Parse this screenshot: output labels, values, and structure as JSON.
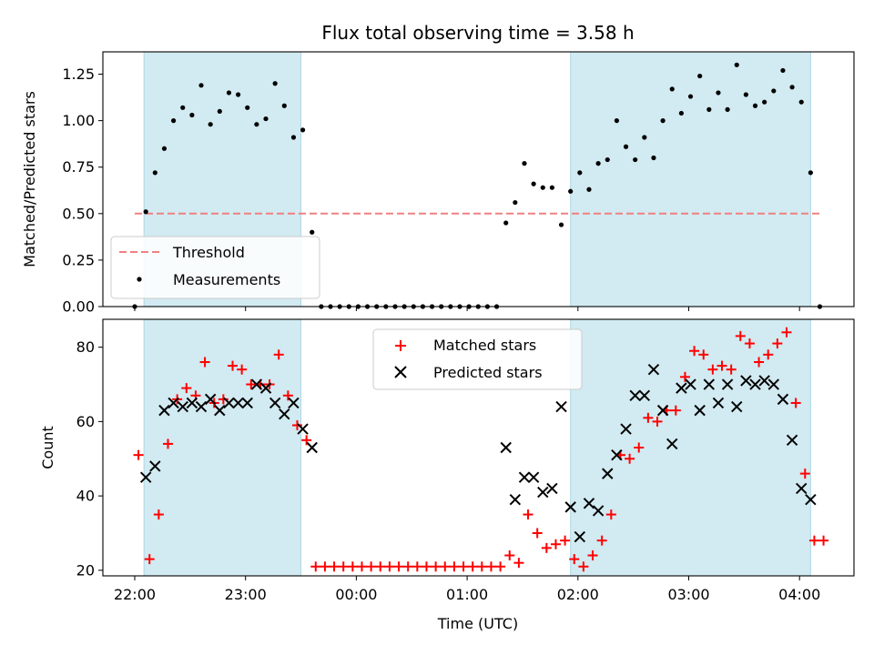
{
  "title": "Flux total observing time = 3.58 h",
  "x_axis": {
    "label": "Time (UTC)",
    "tick_labels": [
      "22:00",
      "23:00",
      "00:00",
      "01:00",
      "02:00",
      "03:00",
      "04:00"
    ]
  },
  "shaded_spans": [
    [
      "22:05",
      "23:30"
    ],
    [
      "01:56",
      "04:06"
    ]
  ],
  "shade_color": "#add8e6",
  "chart_data": [
    {
      "type": "scatter",
      "ylabel": "Matched/Predicted stars",
      "ylim": [
        0,
        1.37
      ],
      "yticks": [
        0.0,
        0.25,
        0.5,
        0.75,
        1.0,
        1.25
      ],
      "ytick_labels": [
        "0.00",
        "0.25",
        "0.50",
        "0.75",
        "1.00",
        "1.25"
      ],
      "legend_position": "lower-left",
      "threshold": {
        "name": "Threshold",
        "value": 0.5,
        "x_range": [
          "22:00",
          "04:12"
        ],
        "color": "#f08080",
        "style": "dashed"
      },
      "series": [
        {
          "name": "Measurements",
          "color": "#000000",
          "x": [
            "22:00",
            "22:06",
            "22:11",
            "22:16",
            "22:21",
            "22:26",
            "22:31",
            "22:36",
            "22:41",
            "22:46",
            "22:51",
            "22:56",
            "23:01",
            "23:06",
            "23:11",
            "23:16",
            "23:21",
            "23:26",
            "23:31",
            "23:36",
            "23:41",
            "23:46",
            "23:51",
            "23:56",
            "00:01",
            "00:06",
            "00:11",
            "00:16",
            "00:21",
            "00:26",
            "00:31",
            "00:36",
            "00:41",
            "00:46",
            "00:51",
            "00:56",
            "01:01",
            "01:06",
            "01:11",
            "01:16",
            "01:21",
            "01:26",
            "01:31",
            "01:36",
            "01:41",
            "01:46",
            "01:51",
            "01:56",
            "02:01",
            "02:06",
            "02:11",
            "02:16",
            "02:21",
            "02:26",
            "02:31",
            "02:36",
            "02:41",
            "02:46",
            "02:51",
            "02:56",
            "03:01",
            "03:06",
            "03:11",
            "03:16",
            "03:21",
            "03:26",
            "03:31",
            "03:36",
            "03:41",
            "03:46",
            "03:51",
            "03:56",
            "04:01",
            "04:06",
            "04:11"
          ],
          "y": [
            0.0,
            0.51,
            0.72,
            0.85,
            1.0,
            1.07,
            1.03,
            1.19,
            0.98,
            1.05,
            1.15,
            1.14,
            1.07,
            0.98,
            1.01,
            1.2,
            1.08,
            0.91,
            0.95,
            0.4,
            0.0,
            0.0,
            0.0,
            0.0,
            0.0,
            0.0,
            0.0,
            0.0,
            0.0,
            0.0,
            0.0,
            0.0,
            0.0,
            0.0,
            0.0,
            0.0,
            0.0,
            0.0,
            0.0,
            0.0,
            0.45,
            0.56,
            0.77,
            0.66,
            0.64,
            0.64,
            0.44,
            0.62,
            0.72,
            0.63,
            0.77,
            0.79,
            1.0,
            0.86,
            0.79,
            0.91,
            0.8,
            1.0,
            1.17,
            1.04,
            1.13,
            1.24,
            1.06,
            1.15,
            1.06,
            1.3,
            1.14,
            1.08,
            1.1,
            1.16,
            1.27,
            1.18,
            1.1,
            0.72,
            0.0
          ]
        }
      ]
    },
    {
      "type": "scatter",
      "ylabel": "Count",
      "ylim": [
        18.5,
        87.5
      ],
      "yticks": [
        20,
        40,
        60,
        80
      ],
      "ytick_labels": [
        "20",
        "40",
        "60",
        "80"
      ],
      "legend_position": "top-center",
      "series": [
        {
          "name": "Matched stars",
          "color": "#ff0000",
          "marker": "plus",
          "x": [
            "22:02",
            "22:08",
            "22:13",
            "22:18",
            "22:23",
            "22:28",
            "22:33",
            "22:38",
            "22:43",
            "22:48",
            "22:53",
            "22:58",
            "23:03",
            "23:08",
            "23:13",
            "23:18",
            "23:23",
            "23:28",
            "23:33",
            "23:38",
            "23:43",
            "23:48",
            "23:53",
            "23:58",
            "00:03",
            "00:08",
            "00:13",
            "00:18",
            "00:23",
            "00:28",
            "00:33",
            "00:38",
            "00:43",
            "00:48",
            "00:53",
            "00:58",
            "01:03",
            "01:08",
            "01:13",
            "01:18",
            "01:23",
            "01:28",
            "01:33",
            "01:38",
            "01:43",
            "01:48",
            "01:53",
            "01:58",
            "02:03",
            "02:08",
            "02:13",
            "02:18",
            "02:23",
            "02:28",
            "02:33",
            "02:38",
            "02:43",
            "02:48",
            "02:53",
            "02:58",
            "03:03",
            "03:08",
            "03:13",
            "03:18",
            "03:23",
            "03:28",
            "03:33",
            "03:38",
            "03:43",
            "03:48",
            "03:53",
            "03:58",
            "04:03",
            "04:08",
            "04:13"
          ],
          "y": [
            51,
            23,
            35,
            54,
            66,
            69,
            67,
            76,
            65,
            66,
            75,
            74,
            70,
            70,
            70,
            78,
            67,
            59,
            55,
            21,
            21,
            21,
            21,
            21,
            21,
            21,
            21,
            21,
            21,
            21,
            21,
            21,
            21,
            21,
            21,
            21,
            21,
            21,
            21,
            21,
            24,
            22,
            35,
            30,
            26,
            27,
            28,
            23,
            21,
            24,
            28,
            35,
            51,
            50,
            53,
            61,
            60,
            63,
            63,
            72,
            79,
            78,
            74,
            75,
            74,
            83,
            81,
            76,
            78,
            81,
            84,
            65,
            46,
            28,
            28
          ]
        },
        {
          "name": "Predicted stars",
          "color": "#000000",
          "marker": "x",
          "x": [
            "22:06",
            "22:11",
            "22:16",
            "22:21",
            "22:26",
            "22:31",
            "22:36",
            "22:41",
            "22:46",
            "22:51",
            "22:56",
            "23:01",
            "23:06",
            "23:11",
            "23:16",
            "23:21",
            "23:26",
            "23:31",
            "23:36",
            "01:21",
            "01:26",
            "01:31",
            "01:36",
            "01:41",
            "01:46",
            "01:51",
            "01:56",
            "02:01",
            "02:06",
            "02:11",
            "02:16",
            "02:21",
            "02:26",
            "02:31",
            "02:36",
            "02:41",
            "02:46",
            "02:51",
            "02:56",
            "03:01",
            "03:06",
            "03:11",
            "03:16",
            "03:21",
            "03:26",
            "03:31",
            "03:36",
            "03:41",
            "03:46",
            "03:51",
            "03:56",
            "04:01",
            "04:06"
          ],
          "y": [
            45,
            48,
            63,
            65,
            64,
            65,
            64,
            66,
            63,
            65,
            65,
            65,
            70,
            69,
            65,
            62,
            65,
            58,
            53,
            53,
            39,
            45,
            45,
            41,
            42,
            64,
            37,
            29,
            38,
            36,
            46,
            51,
            58,
            67,
            67,
            74,
            63,
            54,
            69,
            70,
            63,
            70,
            65,
            70,
            64,
            71,
            70,
            71,
            70,
            66,
            55,
            42,
            39
          ]
        }
      ]
    }
  ]
}
